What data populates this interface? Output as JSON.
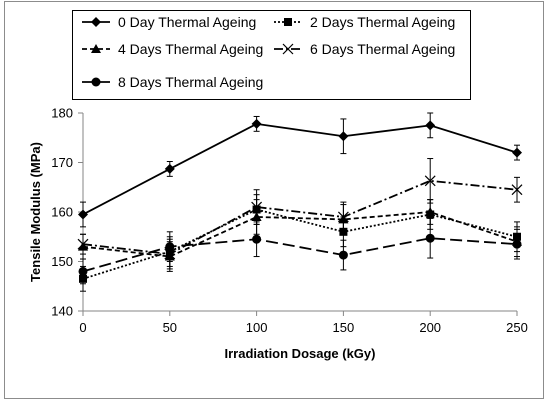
{
  "chart_data": {
    "type": "line",
    "title": "",
    "xlabel": "Irradiation Dosage (kGy)",
    "ylabel": "Tensile Modulus (MPa)",
    "x": [
      0,
      50,
      100,
      150,
      200,
      250
    ],
    "xticks": [
      "0",
      "50",
      "100",
      "150",
      "200",
      "250"
    ],
    "yticks": [
      "140",
      "150",
      "160",
      "170",
      "180"
    ],
    "xlim": [
      0,
      250
    ],
    "ylim": [
      140,
      180
    ],
    "grid": false,
    "legend_position": "top-center",
    "series": [
      {
        "name": "0 Day Thermal Ageing",
        "values": [
          159.5,
          168.7,
          177.8,
          175.3,
          177.5,
          172.0
        ],
        "errors": [
          2.5,
          1.5,
          1.5,
          3.5,
          2.5,
          1.5
        ],
        "marker": "diamond",
        "line_style": "solid",
        "color": "#000000"
      },
      {
        "name": "2 Days Thermal Ageing",
        "values": [
          146.5,
          152.0,
          160.5,
          156.0,
          159.5,
          155.0
        ],
        "errors": [
          2.5,
          3.0,
          3.0,
          3.0,
          3.0,
          3.0
        ],
        "marker": "square",
        "line_style": "dotted",
        "color": "#000000"
      },
      {
        "name": "4 Days Thermal Ageing",
        "values": [
          153.0,
          151.0,
          159.0,
          158.5,
          160.0,
          154.0
        ],
        "errors": [
          2.5,
          3.0,
          3.5,
          3.0,
          2.5,
          3.0
        ],
        "marker": "triangle",
        "line_style": "short-dash",
        "color": "#000000"
      },
      {
        "name": "6 Days Thermal Ageing",
        "values": [
          153.5,
          151.5,
          161.0,
          159.0,
          166.3,
          164.5
        ],
        "errors": [
          2.0,
          3.0,
          3.5,
          3.0,
          4.5,
          2.5
        ],
        "marker": "x",
        "line_style": "dash-dot",
        "color": "#000000"
      },
      {
        "name": "8 Days Thermal Ageing",
        "values": [
          148.0,
          153.0,
          154.5,
          151.3,
          154.7,
          153.5
        ],
        "errors": [
          2.5,
          3.0,
          3.5,
          3.0,
          4.0,
          3.0
        ],
        "marker": "circle",
        "line_style": "long-dash",
        "color": "#000000"
      }
    ]
  }
}
